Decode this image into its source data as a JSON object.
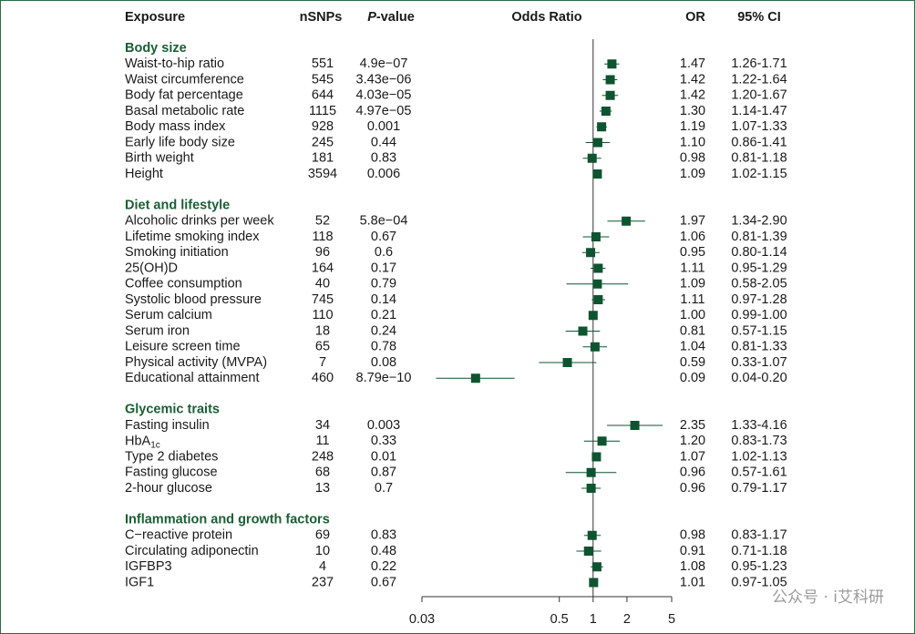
{
  "header": {
    "exposure": "Exposure",
    "nsnps": "nSNPs",
    "p_italic": "P",
    "p_rest": "-value",
    "odds_ratio": "Odds Ratio",
    "or": "OR",
    "ci": "95% CI"
  },
  "chart_data": {
    "type": "forest",
    "log_scale": true,
    "xlim": [
      0.03,
      5
    ],
    "xticks": [
      0.03,
      0.5,
      1,
      2,
      5
    ],
    "reference": 1,
    "color": "#0e5430",
    "heading_color": "#1b5e34",
    "groups": [
      {
        "name": "Body size",
        "rows": [
          {
            "exposure": "Waist-to-hip ratio",
            "nsnps": 551,
            "p_value": "4.9e−07",
            "or": 1.47,
            "or_label": "1.47",
            "ci_low": 1.26,
            "ci_high": 1.71,
            "ci_label": "1.26-1.71"
          },
          {
            "exposure": "Waist circumference",
            "nsnps": 545,
            "p_value": "3.43e−06",
            "or": 1.42,
            "or_label": "1.42",
            "ci_low": 1.22,
            "ci_high": 1.64,
            "ci_label": "1.22-1.64"
          },
          {
            "exposure": "Body fat percentage",
            "nsnps": 644,
            "p_value": "4.03e−05",
            "or": 1.42,
            "or_label": "1.42",
            "ci_low": 1.2,
            "ci_high": 1.67,
            "ci_label": "1.20-1.67"
          },
          {
            "exposure": "Basal metabolic rate",
            "nsnps": 1115,
            "p_value": "4.97e−05",
            "or": 1.3,
            "or_label": "1.30",
            "ci_low": 1.14,
            "ci_high": 1.47,
            "ci_label": "1.14-1.47"
          },
          {
            "exposure": "Body mass index",
            "nsnps": 928,
            "p_value": "0.001",
            "or": 1.19,
            "or_label": "1.19",
            "ci_low": 1.07,
            "ci_high": 1.33,
            "ci_label": "1.07-1.33"
          },
          {
            "exposure": "Early life body size",
            "nsnps": 245,
            "p_value": "0.44",
            "or": 1.1,
            "or_label": "1.10",
            "ci_low": 0.86,
            "ci_high": 1.41,
            "ci_label": "0.86-1.41"
          },
          {
            "exposure": "Birth weight",
            "nsnps": 181,
            "p_value": "0.83",
            "or": 0.98,
            "or_label": "0.98",
            "ci_low": 0.81,
            "ci_high": 1.18,
            "ci_label": "0.81-1.18"
          },
          {
            "exposure": "Height",
            "nsnps": 3594,
            "p_value": "0.006",
            "or": 1.09,
            "or_label": "1.09",
            "ci_low": 1.02,
            "ci_high": 1.15,
            "ci_label": "1.02-1.15"
          }
        ]
      },
      {
        "name": "Diet and lifestyle",
        "rows": [
          {
            "exposure": "Alcoholic drinks per week",
            "nsnps": 52,
            "p_value": "5.8e−04",
            "or": 1.97,
            "or_label": "1.97",
            "ci_low": 1.34,
            "ci_high": 2.9,
            "ci_label": "1.34-2.90"
          },
          {
            "exposure": "Lifetime smoking index",
            "nsnps": 118,
            "p_value": "0.67",
            "or": 1.06,
            "or_label": "1.06",
            "ci_low": 0.81,
            "ci_high": 1.39,
            "ci_label": "0.81-1.39"
          },
          {
            "exposure": "Smoking initiation",
            "nsnps": 96,
            "p_value": "0.6",
            "or": 0.95,
            "or_label": "0.95",
            "ci_low": 0.8,
            "ci_high": 1.14,
            "ci_label": "0.80-1.14"
          },
          {
            "exposure": "25(OH)D",
            "nsnps": 164,
            "p_value": "0.17",
            "or": 1.11,
            "or_label": "1.11",
            "ci_low": 0.95,
            "ci_high": 1.29,
            "ci_label": "0.95-1.29"
          },
          {
            "exposure": "Coffee consumption",
            "nsnps": 40,
            "p_value": "0.79",
            "or": 1.09,
            "or_label": "1.09",
            "ci_low": 0.58,
            "ci_high": 2.05,
            "ci_label": "0.58-2.05"
          },
          {
            "exposure": "Systolic blood pressure",
            "nsnps": 745,
            "p_value": "0.14",
            "or": 1.11,
            "or_label": "1.11",
            "ci_low": 0.97,
            "ci_high": 1.28,
            "ci_label": "0.97-1.28"
          },
          {
            "exposure": "Serum calcium",
            "nsnps": 110,
            "p_value": "0.21",
            "or": 1.0,
            "or_label": "1.00",
            "ci_low": 0.99,
            "ci_high": 1.0,
            "ci_label": "0.99-1.00"
          },
          {
            "exposure": "Serum iron",
            "nsnps": 18,
            "p_value": "0.24",
            "or": 0.81,
            "or_label": "0.81",
            "ci_low": 0.57,
            "ci_high": 1.15,
            "ci_label": "0.57-1.15"
          },
          {
            "exposure": "Leisure screen time",
            "nsnps": 65,
            "p_value": "0.78",
            "or": 1.04,
            "or_label": "1.04",
            "ci_low": 0.81,
            "ci_high": 1.33,
            "ci_label": "0.81-1.33"
          },
          {
            "exposure": "Physical activity (MVPA)",
            "nsnps": 7,
            "p_value": "0.08",
            "or": 0.59,
            "or_label": "0.59",
            "ci_low": 0.33,
            "ci_high": 1.07,
            "ci_label": "0.33-1.07"
          },
          {
            "exposure": "Educational attainment",
            "nsnps": 460,
            "p_value": "8.79e−10",
            "or": 0.09,
            "or_label": "0.09",
            "ci_low": 0.04,
            "ci_high": 0.2,
            "ci_label": "0.04-0.20"
          }
        ]
      },
      {
        "name": "Glycemic traits",
        "rows": [
          {
            "exposure": "Fasting insulin",
            "nsnps": 34,
            "p_value": "0.003",
            "or": 2.35,
            "or_label": "2.35",
            "ci_low": 1.33,
            "ci_high": 4.16,
            "ci_label": "1.33-4.16"
          },
          {
            "exposure": "HbA",
            "exposure_sub": "1c",
            "nsnps": 11,
            "p_value": "0.33",
            "or": 1.2,
            "or_label": "1.20",
            "ci_low": 0.83,
            "ci_high": 1.73,
            "ci_label": "0.83-1.73"
          },
          {
            "exposure": "Type 2 diabetes",
            "nsnps": 248,
            "p_value": "0.01",
            "or": 1.07,
            "or_label": "1.07",
            "ci_low": 1.02,
            "ci_high": 1.13,
            "ci_label": "1.02-1.13"
          },
          {
            "exposure": "Fasting glucose",
            "nsnps": 68,
            "p_value": "0.87",
            "or": 0.96,
            "or_label": "0.96",
            "ci_low": 0.57,
            "ci_high": 1.61,
            "ci_label": "0.57-1.61"
          },
          {
            "exposure": "2-hour glucose",
            "nsnps": 13,
            "p_value": "0.7",
            "or": 0.96,
            "or_label": "0.96",
            "ci_low": 0.79,
            "ci_high": 1.17,
            "ci_label": "0.79-1.17"
          }
        ]
      },
      {
        "name": "Inflammation and growth factors",
        "rows": [
          {
            "exposure": "C−reactive protein",
            "nsnps": 69,
            "p_value": "0.83",
            "or": 0.98,
            "or_label": "0.98",
            "ci_low": 0.83,
            "ci_high": 1.17,
            "ci_label": "0.83-1.17"
          },
          {
            "exposure": "Circulating adiponectin",
            "nsnps": 10,
            "p_value": "0.48",
            "or": 0.91,
            "or_label": "0.91",
            "ci_low": 0.71,
            "ci_high": 1.18,
            "ci_label": "0.71-1.18"
          },
          {
            "exposure": "IGFBP3",
            "nsnps": 4,
            "p_value": "0.22",
            "or": 1.08,
            "or_label": "1.08",
            "ci_low": 0.95,
            "ci_high": 1.23,
            "ci_label": "0.95-1.23"
          },
          {
            "exposure": "IGF1",
            "nsnps": 237,
            "p_value": "0.67",
            "or": 1.01,
            "or_label": "1.01",
            "ci_low": 0.97,
            "ci_high": 1.05,
            "ci_label": "0.97-1.05"
          }
        ]
      }
    ]
  },
  "watermark": "公众号 · i艾科研"
}
